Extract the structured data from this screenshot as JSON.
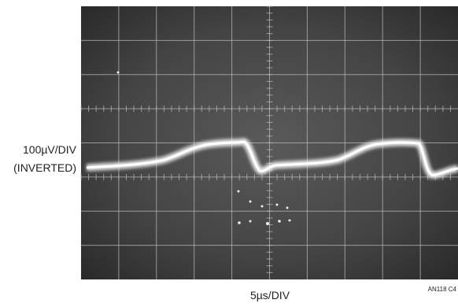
{
  "labels": {
    "vertical_scale": "100µV/DIV",
    "vertical_note": "(INVERTED)",
    "horizontal_scale": "5µs/DIV",
    "figure_id": "AN118 C4"
  }
}
